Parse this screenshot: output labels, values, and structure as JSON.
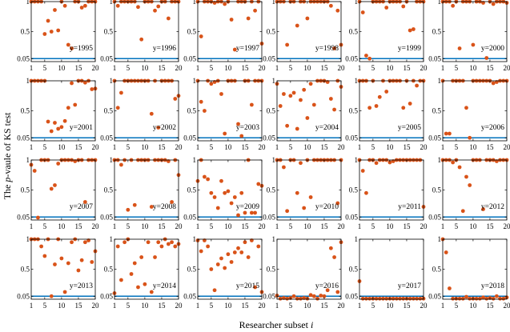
{
  "figure": {
    "ylabel_prefix": "The ",
    "ylabel_italic": "p",
    "ylabel_suffix": "-vaule of KS test",
    "xlabel_prefix": "Researcher subset ",
    "xlabel_italic": "i"
  },
  "colors": {
    "marker": "#d95319",
    "reference_line": "#0072bd",
    "axis": "#000000"
  },
  "chart_data": {
    "type": "scatter",
    "layout": "small-multiples 4x6",
    "x_ticks": [
      1,
      5,
      10,
      15,
      20
    ],
    "y_ticks": [
      0.05,
      0.5,
      1
    ],
    "y_tick_labels": [
      "0.05",
      "0.5",
      "1"
    ],
    "xlim": [
      1,
      20
    ],
    "ylim": [
      0,
      1
    ],
    "reference_line_y": 0.05,
    "panels": [
      {
        "label": "y=1995",
        "values": [
          1,
          1,
          1,
          1,
          0.46,
          0.68,
          0.5,
          0.86,
          0.52,
          1,
          0.93,
          0.28,
          0.22,
          1,
          1,
          0.9,
          0.93,
          1,
          1,
          1
        ]
      },
      {
        "label": "y=1996",
        "values": [
          1,
          0.93,
          1,
          1,
          1,
          1,
          1,
          0.91,
          0.37,
          1,
          1,
          1,
          0.85,
          0.92,
          1,
          1,
          0.72,
          1,
          1,
          1
        ]
      },
      {
        "label": "y=1997",
        "values": [
          1,
          0.42,
          1,
          1,
          1,
          0.98,
          1,
          1,
          0.96,
          1,
          0.7,
          0.2,
          1,
          1,
          1,
          0.72,
          1,
          0.85,
          1,
          0.3
        ]
      },
      {
        "label": "y=1998",
        "values": [
          1,
          1,
          1,
          0.28,
          1,
          1,
          0.6,
          1,
          1,
          0.72,
          1,
          1,
          1,
          1,
          1,
          1,
          0.93,
          0.22,
          0.85,
          0.28
        ]
      },
      {
        "label": "y=1999",
        "values": [
          1,
          0.82,
          0.1,
          0.05,
          1,
          1,
          1,
          1,
          0.9,
          1,
          1,
          1,
          1,
          0.92,
          1,
          0.52,
          0.54,
          1,
          1,
          1
        ]
      },
      {
        "label": "y=2000",
        "values": [
          1,
          1,
          1,
          0.93,
          1,
          0.22,
          1,
          1,
          1,
          0.28,
          1,
          1,
          0.98,
          0.06,
          1,
          0.96,
          1,
          1,
          1,
          0.98
        ]
      },
      {
        "label": "y=2001",
        "values": [
          1,
          1,
          1,
          1,
          1,
          0.32,
          0.16,
          0.3,
          0.2,
          0.23,
          0.33,
          0.55,
          0.96,
          0.6,
          1,
          1,
          0.97,
          1,
          0.86,
          0.87
        ]
      },
      {
        "label": "y=2002",
        "values": [
          1,
          0.55,
          0.8,
          1,
          1,
          1,
          1,
          1,
          1,
          1,
          1,
          0.45,
          1,
          0.22,
          1,
          1,
          1,
          1,
          0.7,
          0.75
        ]
      },
      {
        "label": "y=2003",
        "values": [
          1,
          0.65,
          0.5,
          1,
          0.95,
          0.98,
          1,
          0.78,
          0.12,
          1,
          1,
          1,
          0.28,
          0.08,
          1,
          1,
          0.6,
          1,
          1,
          1
        ]
      },
      {
        "label": "y=2004",
        "values": [
          0.95,
          0.58,
          0.78,
          0.25,
          0.75,
          0.8,
          0.2,
          0.68,
          0.85,
          0.38,
          0.95,
          0.6,
          1,
          1,
          1,
          0.98,
          0.7,
          0.52,
          1,
          0.9
        ]
      },
      {
        "label": "y=2005",
        "values": [
          1,
          1,
          1,
          0.55,
          1,
          0.58,
          0.73,
          1,
          0.82,
          1,
          1,
          1,
          1,
          0.55,
          1,
          0.62,
          1,
          0.92,
          1,
          1
        ]
      },
      {
        "label": "y=2006",
        "values": [
          1,
          0.12,
          0.12,
          1,
          1,
          1,
          1,
          0.55,
          0.05,
          1,
          1,
          1,
          1,
          1,
          1,
          0.96,
          0.98,
          1,
          1,
          1
        ]
      },
      {
        "label": "y=2007",
        "values": [
          0.92,
          0.82,
          0.04,
          1,
          1,
          1,
          0.52,
          0.58,
          0.94,
          1,
          1,
          1,
          1,
          0.98,
          1,
          1,
          0.3,
          1,
          1,
          1
        ]
      },
      {
        "label": "y=2008",
        "values": [
          1,
          1,
          0.92,
          1,
          0.17,
          1,
          0.25,
          1,
          1,
          1,
          1,
          0.22,
          1,
          1,
          1,
          1,
          0.98,
          0.3,
          1,
          0.75
        ]
      },
      {
        "label": "y=2009",
        "values": [
          0.65,
          1,
          0.72,
          0.68,
          0.45,
          0.38,
          0.2,
          0.65,
          0.45,
          0.48,
          0.28,
          0.38,
          0.08,
          0.45,
          0.12,
          1,
          0.12,
          0.12,
          0.6,
          0.57
        ]
      },
      {
        "label": "y=2010",
        "values": [
          1,
          1,
          0.88,
          0.15,
          1,
          1,
          0.45,
          0.95,
          0.2,
          1,
          0.38,
          1,
          1,
          1,
          1,
          1,
          1,
          1,
          0.28,
          1
        ]
      },
      {
        "label": "y=2011",
        "values": [
          1,
          0.82,
          0.45,
          1,
          1,
          0.95,
          1,
          1,
          1,
          0.96,
          0.98,
          1,
          1,
          1,
          1,
          1,
          1,
          1,
          1,
          0.22
        ]
      },
      {
        "label": "y=2012",
        "values": [
          1,
          1,
          1,
          0.96,
          1,
          0.88,
          0.15,
          0.72,
          0.58,
          1,
          1,
          1,
          0.18,
          1,
          1,
          1,
          0.98,
          1,
          1,
          1
        ]
      },
      {
        "label": "y=2013",
        "values": [
          1,
          1,
          1,
          0.88,
          0.72,
          1,
          0.05,
          0.58,
          1,
          0.68,
          0.12,
          0.6,
          0.95,
          1,
          0.48,
          0.65,
          0.95,
          0.98,
          0.62,
          0.8
        ]
      },
      {
        "label": "y=2014",
        "values": [
          0.1,
          0.88,
          0.32,
          0.95,
          1,
          0.42,
          0.6,
          0.2,
          0.7,
          0.25,
          0.95,
          0.12,
          0.7,
          0.95,
          0.88,
          1,
          0.92,
          0.95,
          0.88,
          0.92
        ]
      },
      {
        "label": "y=2015",
        "values": [
          0.98,
          0.8,
          0.98,
          0.88,
          0.5,
          0.15,
          0.58,
          0.68,
          0.52,
          0.75,
          0.62,
          0.78,
          0.85,
          0.78,
          0.95,
          0.7,
          0.98,
          0.2,
          0.88,
          0.12
        ]
      },
      {
        "label": "y=2016",
        "values": [
          0.06,
          0.01,
          0.02,
          0.01,
          0.02,
          0.05,
          0.01,
          0.01,
          0.02,
          0.01,
          0.07,
          0.05,
          0.01,
          0.06,
          0.05,
          0.15,
          0.85,
          0.7,
          0.12,
          0.95
        ]
      },
      {
        "label": "y=2017",
        "values": [
          0.3,
          0.01,
          0.01,
          0.01,
          0.01,
          0.01,
          0.01,
          0.01,
          0.01,
          0.01,
          0.01,
          0.01,
          0.01,
          0.01,
          0.01,
          0.01,
          0.01,
          0.01,
          0.01,
          0.01
        ]
      },
      {
        "label": "y=2018",
        "values": [
          1,
          0.78,
          0.18,
          0.01,
          0.01,
          0.01,
          0.01,
          0.04,
          0.01,
          0.01,
          0.01,
          0.01,
          0.03,
          0.01,
          0.02,
          0.01,
          0.05,
          0.01,
          0.01,
          0.03
        ]
      }
    ]
  }
}
